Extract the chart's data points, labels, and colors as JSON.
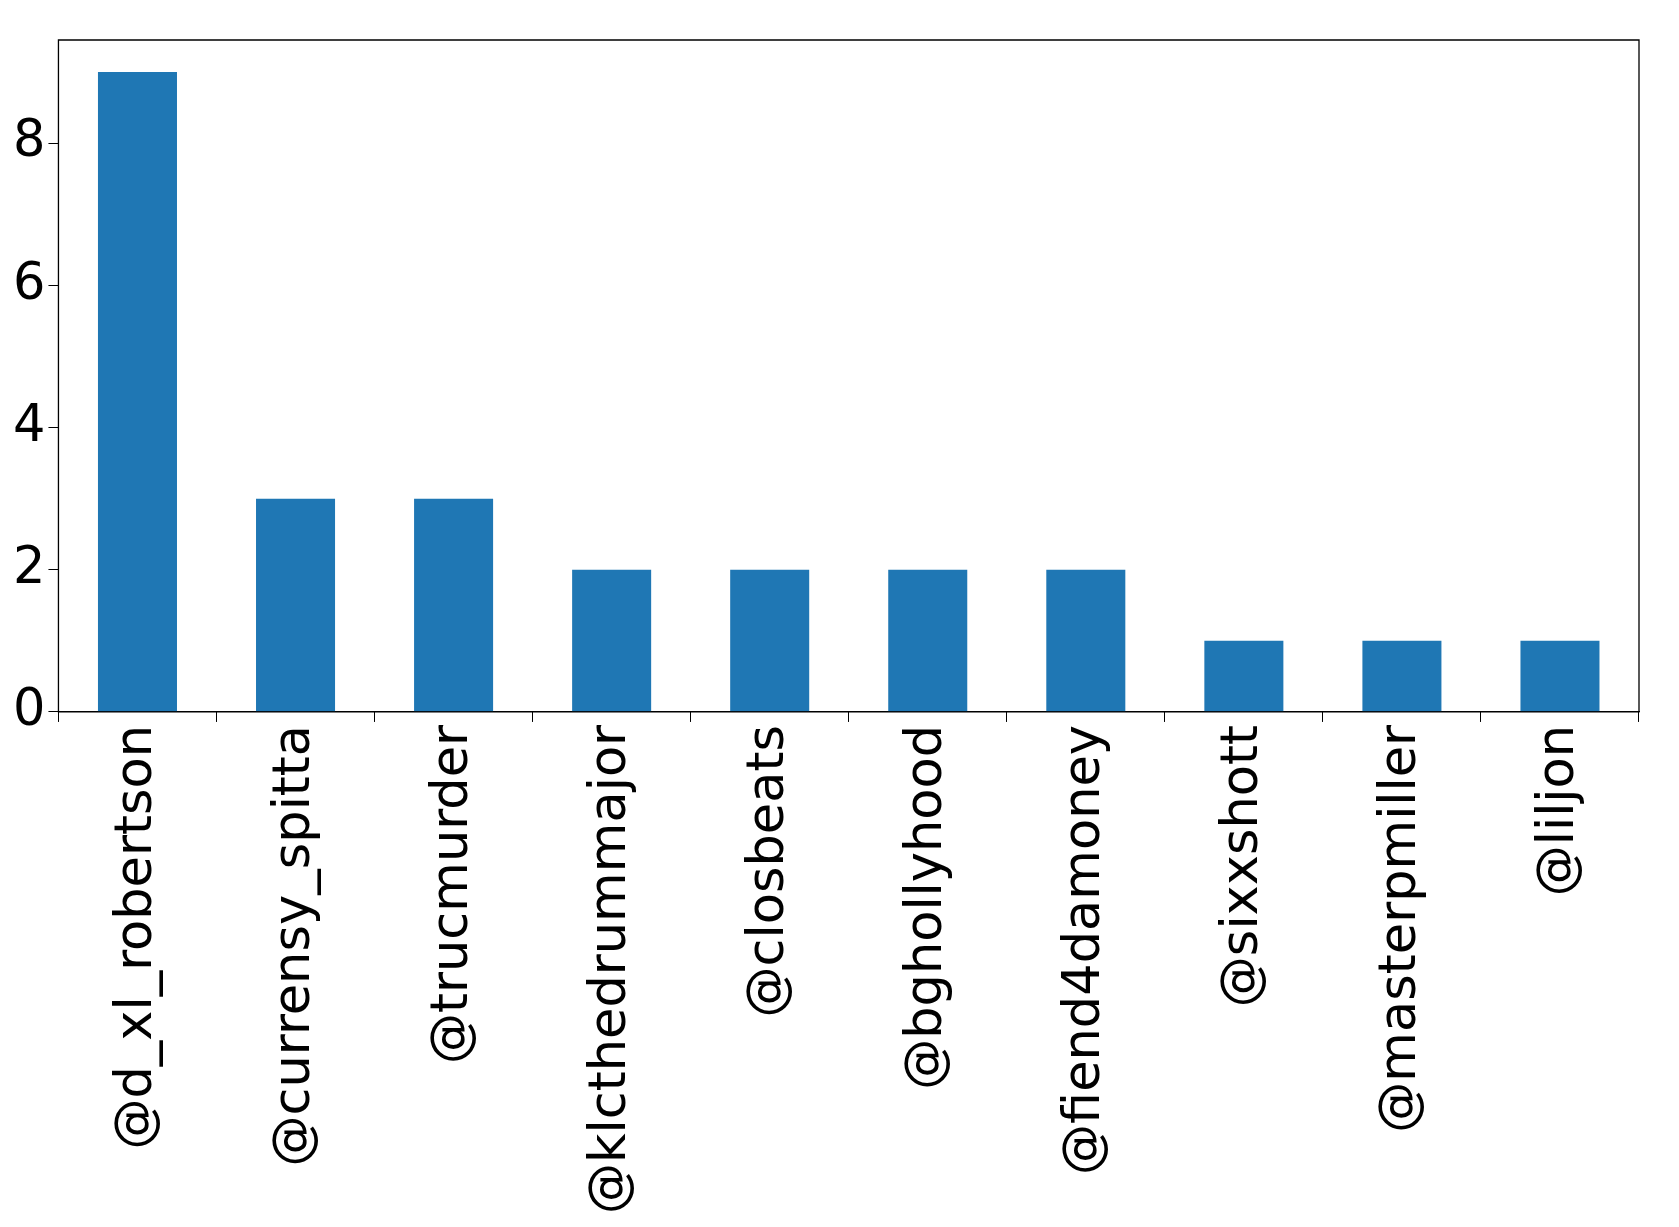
{
  "chart_data": {
    "type": "bar",
    "categories": [
      "@d_xl_robertson",
      "@currensy_spitta",
      "@trucmurder",
      "@klcthedrummajor",
      "@closbeats",
      "@bghollyhood",
      "@fiend4damoney",
      "@sixxshott",
      "@masterpmiller",
      "@liljon"
    ],
    "values": [
      9,
      3,
      3,
      2,
      2,
      2,
      2,
      1,
      1,
      1
    ],
    "color": "#1f77b4",
    "ylim": [
      0,
      9.45
    ],
    "yticks": [
      0,
      2,
      4,
      6,
      8
    ],
    "grid": false,
    "legend": false
  }
}
